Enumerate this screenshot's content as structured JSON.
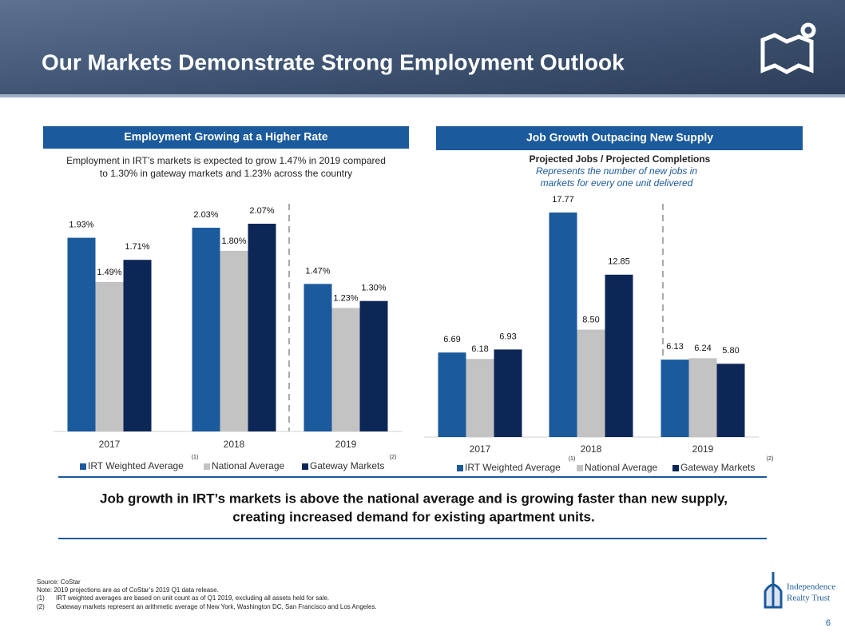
{
  "header": {
    "title": "Our Markets Demonstrate Strong Employment Outlook"
  },
  "chart_data": [
    {
      "type": "bar",
      "panel_title": "Employment Growing at a Higher Rate",
      "subtitle_lines": [
        "Employment in IRT’s markets is expected to grow 1.47% in 2019 compared",
        "to 1.30% in gateway markets and 1.23% across the country"
      ],
      "categories": [
        "2017",
        "2018",
        "2019"
      ],
      "series": [
        {
          "name": "IRT Weighted Average",
          "color": "#1b5a9c",
          "values": [
            1.93,
            2.03,
            1.47
          ],
          "value_labels": [
            "1.93%",
            "2.03%",
            "1.47%"
          ]
        },
        {
          "name": "National Average",
          "color": "#c3c3c3",
          "values": [
            1.49,
            1.8,
            1.23
          ],
          "value_labels": [
            "1.49%",
            "1.80%",
            "1.23%"
          ]
        },
        {
          "name": "Gateway Markets",
          "color": "#0c2656",
          "values": [
            1.71,
            2.07,
            1.3
          ],
          "value_labels": [
            "1.71%",
            "2.07%",
            "1.30%"
          ]
        }
      ],
      "legend_notes": [
        "(1)",
        "(2)"
      ]
    },
    {
      "type": "bar",
      "panel_title": "Job Growth Outpacing New Supply",
      "subtitle_lines": [
        "Projected Jobs / Projected Completions",
        "Represents the number of new jobs in",
        "markets for every one unit delivered"
      ],
      "categories": [
        "2017",
        "2018",
        "2019"
      ],
      "series": [
        {
          "name": "IRT Weighted Average",
          "color": "#1b5a9c",
          "values": [
            6.69,
            17.77,
            6.13
          ],
          "value_labels": [
            "6.69",
            "17.77",
            "6.13"
          ]
        },
        {
          "name": "National Average",
          "color": "#c3c3c3",
          "values": [
            6.18,
            8.5,
            6.24
          ],
          "value_labels": [
            "6.18",
            "8.50",
            "6.24"
          ]
        },
        {
          "name": "Gateway Markets",
          "color": "#0c2656",
          "values": [
            6.93,
            12.85,
            5.8
          ],
          "value_labels": [
            "6.93",
            "12.85",
            "5.80"
          ]
        }
      ],
      "legend_notes": [
        "(1)",
        "(2)"
      ]
    }
  ],
  "conclusion": [
    "Job growth in IRT’s markets is above the national average and is growing faster than new supply,",
    "creating increased demand for existing apartment units."
  ],
  "footnotes": [
    "Source: CoStar",
    "Note: 2019 projections are as of CoStar’s 2019 Q1 data release.",
    "(1)",
    "IRT weighted averages are based on unit count as of Q1 2019, excluding all assets held for sale.",
    "(2)",
    "Gateway markets represent an arithmetic average of New York, Washington DC, San Francisco and Los Angeles."
  ],
  "logo": [
    "Independence",
    "Realty Trust"
  ],
  "page_number": "6"
}
